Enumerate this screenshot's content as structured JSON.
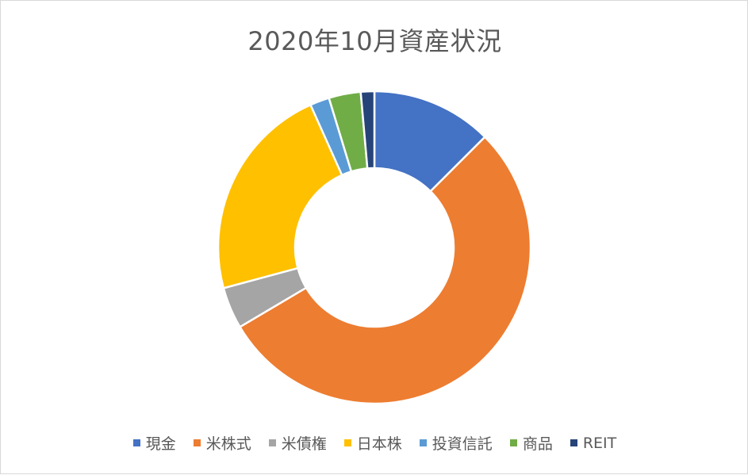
{
  "chart_data": {
    "type": "pie",
    "title": "2020年10月資産状況",
    "categories": [
      "現金",
      "米株式",
      "米債権",
      "日本株",
      "投資信託",
      "商品",
      "REIT"
    ],
    "values": [
      12.5,
      54.0,
      4.3,
      22.5,
      2.0,
      3.3,
      1.4
    ],
    "unit": "%",
    "colors": [
      "#4472c4",
      "#ed7d31",
      "#a5a5a5",
      "#ffc000",
      "#5b9bd5",
      "#70ad47",
      "#264478"
    ],
    "legend_position": "bottom",
    "donut": true
  }
}
